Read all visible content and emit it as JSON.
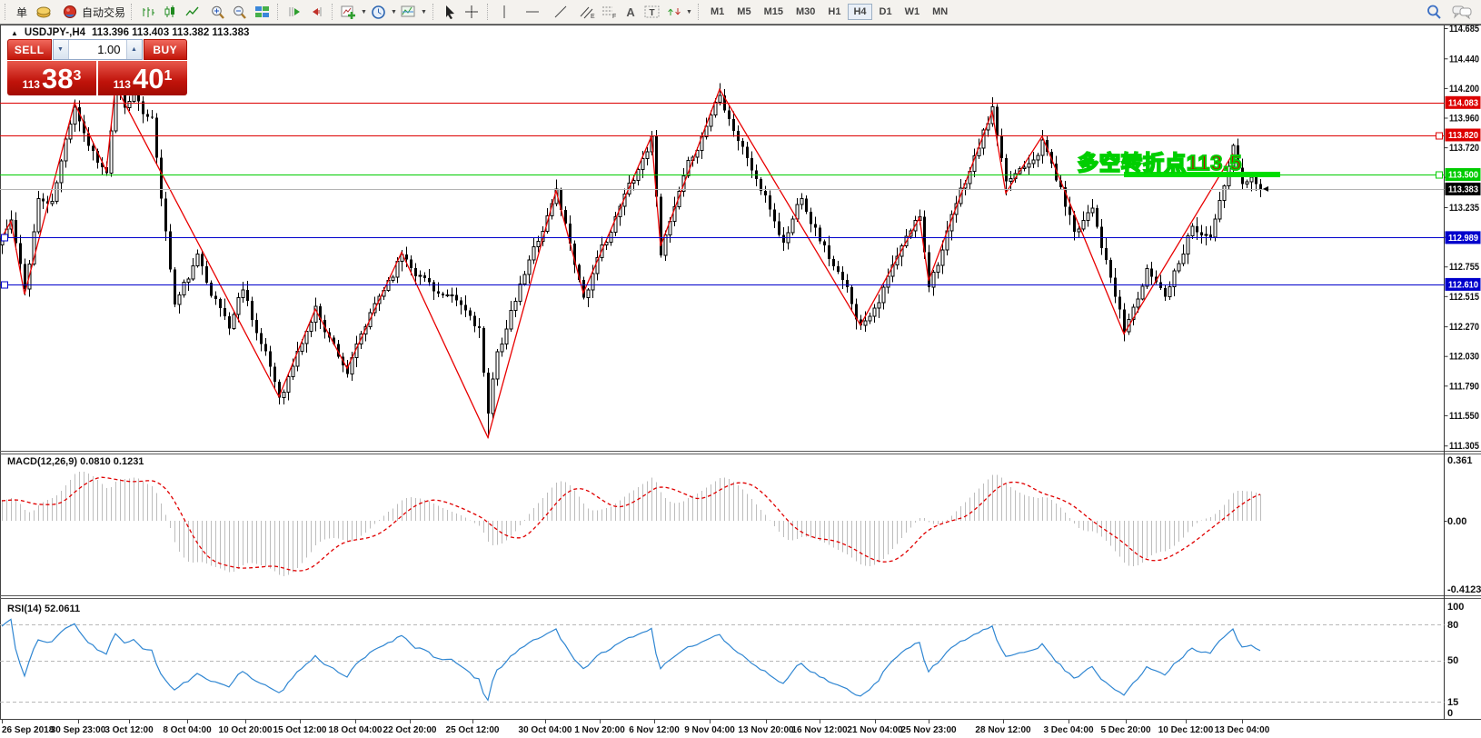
{
  "toolbar": {
    "partial_label": "单",
    "autotrading_label": "自动交易",
    "timeframes": [
      "M1",
      "M5",
      "M15",
      "M30",
      "H1",
      "H4",
      "D1",
      "W1",
      "MN"
    ],
    "active_timeframe": "H4",
    "icons": [
      "order-partial",
      "gold",
      "autotrading",
      "bar-chart",
      "candle-chart",
      "line-chart",
      "zoom-in",
      "zoom-out",
      "tile-windows",
      "auto-scroll",
      "chart-shift",
      "indicators",
      "periods",
      "templates",
      "cursor",
      "crosshair",
      "vertical-line",
      "horizontal-line",
      "trend-line",
      "channel",
      "fibonacci",
      "text",
      "label",
      "arrows",
      "search",
      "chat"
    ]
  },
  "chart_header": {
    "symbol_period": "USDJPY-,H4",
    "ohlc": "113.396 113.403 113.382 113.383"
  },
  "trade_panel": {
    "sell_label": "SELL",
    "buy_label": "BUY",
    "volume": "1.00",
    "bid_prefix": "113",
    "bid_big": "38",
    "bid_sup": "3",
    "ask_prefix": "113",
    "ask_big": "40",
    "ask_sup": "1"
  },
  "annotation": {
    "text": "多空转折点113.5",
    "fill": "#c40000",
    "outline": "#00ce00"
  },
  "chart_data": {
    "type": "candlestick",
    "symbol": "USDJPY",
    "period": "H4",
    "title": "USDJPY-,H4 113.396 113.403 113.382 113.383",
    "y_ticks": [
      "114.685",
      "114.440",
      "114.200",
      "113.960",
      "113.720",
      "113.480",
      "113.235",
      "112.995",
      "112.755",
      "112.515",
      "112.270",
      "112.030",
      "111.790",
      "111.550",
      "111.305"
    ],
    "ylim": [
      111.305,
      114.685
    ],
    "price_lines": [
      {
        "price": 114.083,
        "color": "#dd0000",
        "badge": "114.083",
        "badge_bg": "#dd0000",
        "handle": null
      },
      {
        "price": 113.82,
        "color": "#dd0000",
        "badge": "113.820",
        "badge_bg": "#dd0000",
        "handle": "right"
      },
      {
        "price": 113.5,
        "color": "#00cc00",
        "badge": "113.500",
        "badge_bg": "#00cc00",
        "handle": "right",
        "thick_segment": [
          1237,
          1409
        ]
      },
      {
        "price": 113.383,
        "color": "#b4b4b4",
        "badge": "113.383",
        "badge_bg": "#000000",
        "handle": null
      },
      {
        "price": 112.989,
        "color": "#0000cc",
        "badge": "112.989",
        "badge_bg": "#0000cc",
        "handle": "left"
      },
      {
        "price": 112.61,
        "color": "#0000cc",
        "badge": "112.610",
        "badge_bg": "#0000cc",
        "handle": "left"
      }
    ],
    "zigzag": {
      "color": "#e80000",
      "pivots": [
        [
          0,
          112.99
        ],
        [
          2,
          113.12
        ],
        [
          5,
          112.53
        ],
        [
          16,
          114.08
        ],
        [
          23,
          113.53
        ],
        [
          25,
          114.22
        ],
        [
          61,
          111.7
        ],
        [
          69,
          112.41
        ],
        [
          76,
          111.93
        ],
        [
          88,
          112.87
        ],
        [
          107,
          111.37
        ],
        [
          122,
          113.37
        ],
        [
          128,
          112.54
        ],
        [
          143,
          113.81
        ],
        [
          145,
          112.92
        ],
        [
          158,
          114.19
        ],
        [
          189,
          112.28
        ],
        [
          202,
          113.15
        ],
        [
          204,
          112.64
        ],
        [
          218,
          114.01
        ],
        [
          221,
          113.35
        ],
        [
          229,
          113.81
        ],
        [
          247,
          112.21
        ],
        [
          271,
          113.67
        ]
      ]
    },
    "candles": {
      "count": 278,
      "seed": 11,
      "last_close": 113.383,
      "trend": [
        [
          0,
          112.99
        ],
        [
          2,
          113.12
        ],
        [
          5,
          112.53
        ],
        [
          8,
          113.3
        ],
        [
          11,
          113.25
        ],
        [
          16,
          114.08
        ],
        [
          19,
          113.78
        ],
        [
          23,
          113.53
        ],
        [
          25,
          114.22
        ],
        [
          27,
          113.98
        ],
        [
          29,
          114.15
        ],
        [
          33,
          113.92
        ],
        [
          38,
          112.45
        ],
        [
          43,
          112.8
        ],
        [
          50,
          112.28
        ],
        [
          53,
          112.6
        ],
        [
          61,
          111.7
        ],
        [
          69,
          112.41
        ],
        [
          76,
          111.93
        ],
        [
          88,
          112.87
        ],
        [
          100,
          112.42
        ],
        [
          105,
          112.25
        ],
        [
          107,
          111.5
        ],
        [
          109,
          112.05
        ],
        [
          122,
          113.37
        ],
        [
          128,
          112.54
        ],
        [
          143,
          113.81
        ],
        [
          145,
          112.92
        ],
        [
          158,
          114.19
        ],
        [
          172,
          112.95
        ],
        [
          176,
          113.35
        ],
        [
          189,
          112.28
        ],
        [
          202,
          113.15
        ],
        [
          204,
          112.64
        ],
        [
          218,
          114.01
        ],
        [
          221,
          113.35
        ],
        [
          229,
          113.81
        ],
        [
          236,
          113.05
        ],
        [
          240,
          113.3
        ],
        [
          247,
          112.21
        ],
        [
          252,
          112.7
        ],
        [
          256,
          112.55
        ],
        [
          262,
          113.15
        ],
        [
          266,
          113.0
        ],
        [
          271,
          113.67
        ],
        [
          273,
          113.38
        ],
        [
          275,
          113.52
        ],
        [
          277,
          113.383
        ]
      ],
      "force_high": [
        [
          2,
          113.15
        ],
        [
          16,
          114.08
        ],
        [
          25,
          114.26
        ],
        [
          27,
          114.15
        ],
        [
          143,
          113.83
        ],
        [
          158,
          114.24
        ],
        [
          218,
          114.03
        ],
        [
          229,
          113.82
        ],
        [
          271,
          113.7
        ]
      ],
      "force_low": [
        [
          5,
          112.52
        ],
        [
          50,
          112.2
        ],
        [
          61,
          111.66
        ],
        [
          76,
          111.9
        ],
        [
          107,
          111.37
        ],
        [
          128,
          112.53
        ],
        [
          145,
          112.9
        ],
        [
          189,
          112.24
        ],
        [
          204,
          112.62
        ],
        [
          221,
          113.33
        ],
        [
          247,
          112.15
        ]
      ]
    },
    "macd": {
      "label": "MACD(12,26,9)",
      "value_main": "0.0810",
      "value_signal": "0.1231",
      "scale": [
        "0.361",
        "0.00",
        "-0.4123"
      ],
      "histogram_color": "#bdbdbd",
      "signal_color": "#e00000"
    },
    "rsi": {
      "label": "RSI(14)",
      "value": "52.0611",
      "levels": [
        80,
        50,
        15
      ],
      "scale_labels": [
        "100",
        "80",
        "50",
        "15",
        "0"
      ],
      "line_color": "#2f86d2",
      "level_color": "#b8b8b8"
    },
    "x_labels": [
      [
        2,
        "26 Sep 2018"
      ],
      [
        86,
        "30 Sep 23:00"
      ],
      [
        142,
        "3 Oct 12:00"
      ],
      [
        206,
        "8 Oct 04:00"
      ],
      [
        270,
        "10 Oct 20:00"
      ],
      [
        330,
        "15 Oct 12:00"
      ],
      [
        391,
        "18 Oct 04:00"
      ],
      [
        451,
        "22 Oct 20:00"
      ],
      [
        520,
        "25 Oct 12:00"
      ],
      [
        600,
        "30 Oct 04:00"
      ],
      [
        660,
        "1 Nov 20:00"
      ],
      [
        720,
        "6 Nov 12:00"
      ],
      [
        781,
        "9 Nov 04:00"
      ],
      [
        843,
        "13 Nov 20:00"
      ],
      [
        902,
        "16 Nov 12:00"
      ],
      [
        963,
        "21 Nov 04:00"
      ],
      [
        1022,
        "25 Nov 23:00"
      ],
      [
        1104,
        "28 Nov 12:00"
      ],
      [
        1176,
        "3 Dec 04:00"
      ],
      [
        1239,
        "5 Dec 20:00"
      ],
      [
        1305,
        "10 Dec 12:00"
      ],
      [
        1367,
        "13 Dec 04:00"
      ]
    ],
    "last_bar_marker": {
      "x": 1390,
      "price": 113.383
    }
  }
}
